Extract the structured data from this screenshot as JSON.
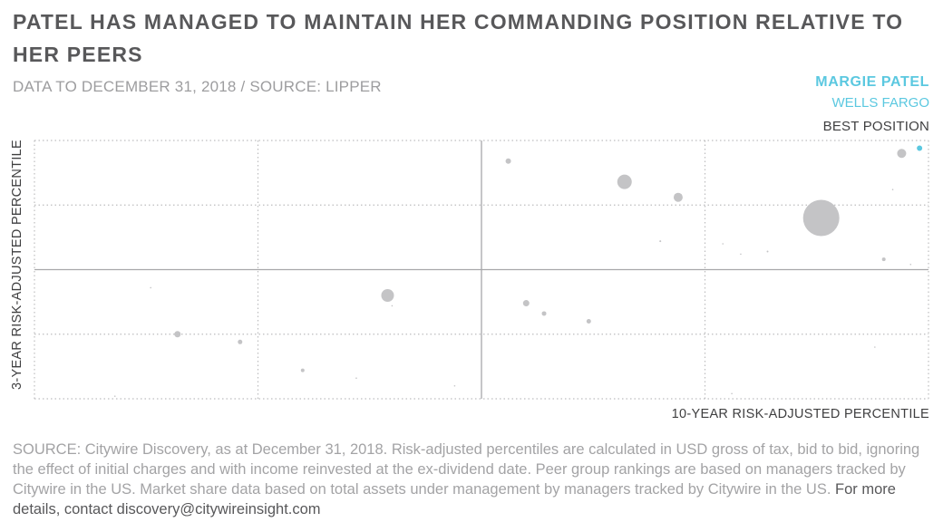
{
  "header": {
    "title": "PATEL HAS MANAGED TO MAINTAIN HER COMMANDING POSITION RELATIVE TO HER PEERS",
    "subtitle": "DATA TO DECEMBER 31, 2018 / SOURCE: LIPPER"
  },
  "legend": {
    "name": "MARGIE PATEL",
    "company": "WELLS FARGO",
    "best_label": "BEST POSITION"
  },
  "colors": {
    "highlight": "#5bc8e0",
    "peers": "#c4c4c6",
    "grid": "#bdbdbf",
    "axis": "#a8a8aa"
  },
  "chart_data": {
    "type": "scatter",
    "title": "PATEL HAS MANAGED TO MAINTAIN HER COMMANDING POSITION RELATIVE TO HER PEERS",
    "xlabel": "10-YEAR RISK-ADJUSTED PERCENTILE",
    "ylabel": "3-YEAR RISK-ADJUSTED PERCENTILE",
    "xlim": [
      0,
      100
    ],
    "ylim": [
      0,
      100
    ],
    "grid": true,
    "bubble_size_meaning": "Market share (total assets under management)",
    "series": [
      {
        "name": "MARGIE PATEL",
        "highlight": true,
        "points": [
          {
            "x": 99,
            "y": 97,
            "size": 3
          }
        ]
      },
      {
        "name": "Peers",
        "highlight": false,
        "points": [
          {
            "x": 97,
            "y": 95,
            "size": 5
          },
          {
            "x": 53,
            "y": 92,
            "size": 3
          },
          {
            "x": 66,
            "y": 84,
            "size": 8
          },
          {
            "x": 72,
            "y": 78,
            "size": 5
          },
          {
            "x": 88,
            "y": 70,
            "size": 20
          },
          {
            "x": 39.5,
            "y": 40,
            "size": 7
          },
          {
            "x": 55,
            "y": 37,
            "size": 3.5
          },
          {
            "x": 57,
            "y": 33,
            "size": 2.5
          },
          {
            "x": 62,
            "y": 30,
            "size": 2.5
          },
          {
            "x": 16,
            "y": 25,
            "size": 3.5
          },
          {
            "x": 23,
            "y": 22,
            "size": 2.5
          },
          {
            "x": 30,
            "y": 11,
            "size": 2
          },
          {
            "x": 95,
            "y": 54,
            "size": 2
          },
          {
            "x": 70,
            "y": 61,
            "size": 1
          },
          {
            "x": 82,
            "y": 57,
            "size": 1
          },
          {
            "x": 96,
            "y": 81,
            "size": 0.8
          },
          {
            "x": 13,
            "y": 43,
            "size": 0.8
          },
          {
            "x": 40,
            "y": 36,
            "size": 0.7
          },
          {
            "x": 47,
            "y": 5,
            "size": 0.6
          },
          {
            "x": 9,
            "y": 1,
            "size": 0.8
          },
          {
            "x": 36,
            "y": 8,
            "size": 0.6
          },
          {
            "x": 78,
            "y": 2,
            "size": 0.6
          },
          {
            "x": 94,
            "y": 20,
            "size": 0.6
          },
          {
            "x": 77,
            "y": 60,
            "size": 0.6
          },
          {
            "x": 79,
            "y": 56,
            "size": 0.6
          },
          {
            "x": 98,
            "y": 52,
            "size": 0.6
          }
        ]
      }
    ]
  },
  "footnote": {
    "text": "SOURCE: Citywire Discovery, as at December 31, 2018. Risk-adjusted percentiles are calculated in USD gross of tax, bid to bid, ignoring the effect of initial charges and with income reinvested at the ex-dividend date. Peer group rankings are based on managers tracked by Citywire in the US. Market share data based on total assets under management by managers tracked by Citywire in the US.",
    "contact": "For more details, contact discovery@citywireinsight.com"
  }
}
